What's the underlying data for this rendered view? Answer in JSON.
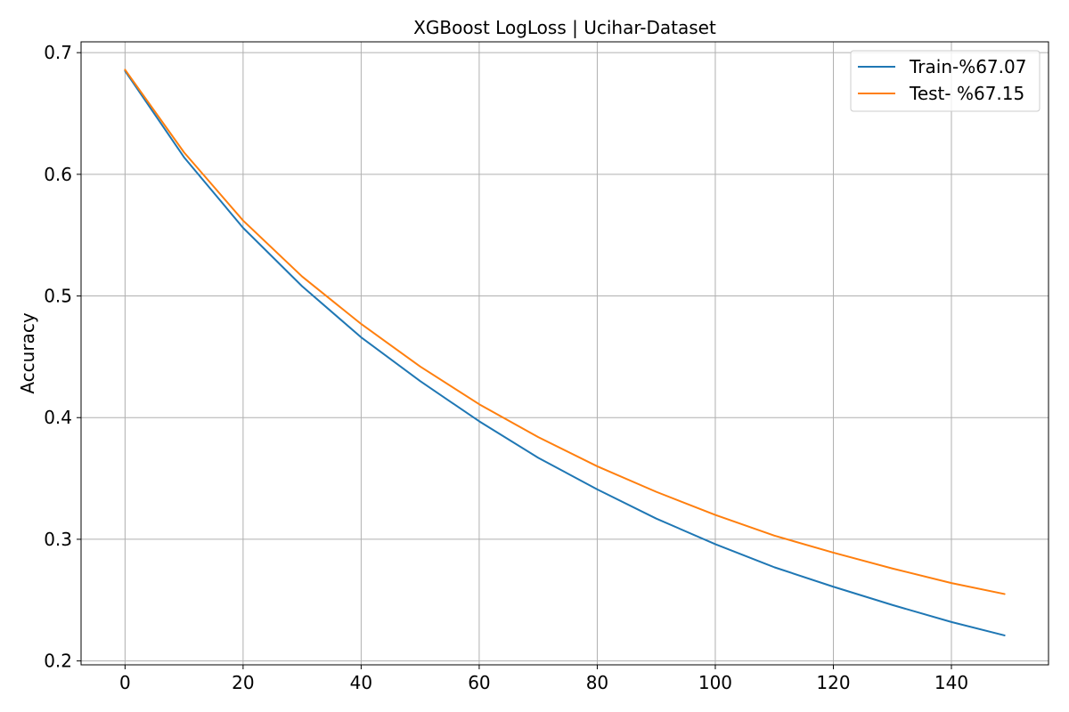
{
  "chart_data": {
    "type": "line",
    "title": "XGBoost LogLoss | Ucihar-Dataset",
    "xlabel": "",
    "ylabel": "Accuracy",
    "xlim": [
      -7.45,
      156.45
    ],
    "ylim": [
      0.1968,
      0.7089
    ],
    "xticks": [
      0,
      20,
      40,
      60,
      80,
      100,
      120,
      140
    ],
    "yticks": [
      0.2,
      0.3,
      0.4,
      0.5,
      0.6,
      0.7
    ],
    "xtick_labels": [
      "0",
      "20",
      "40",
      "60",
      "80",
      "100",
      "120",
      "140"
    ],
    "ytick_labels": [
      "0.2",
      "0.3",
      "0.4",
      "0.5",
      "0.6",
      "0.7"
    ],
    "grid": true,
    "legend_position": "top-right",
    "x": [
      0,
      10,
      20,
      30,
      40,
      50,
      60,
      70,
      80,
      90,
      100,
      110,
      120,
      130,
      140,
      149
    ],
    "series": [
      {
        "name": "Train-%67.07",
        "color": "#1f77b4",
        "values": [
          0.685,
          0.614,
          0.556,
          0.508,
          0.466,
          0.43,
          0.397,
          0.367,
          0.341,
          0.317,
          0.296,
          0.277,
          0.261,
          0.246,
          0.232,
          0.221
        ]
      },
      {
        "name": "Test- %67.15",
        "color": "#ff7f0e",
        "values": [
          0.686,
          0.618,
          0.562,
          0.516,
          0.477,
          0.442,
          0.411,
          0.384,
          0.36,
          0.339,
          0.32,
          0.303,
          0.289,
          0.276,
          0.264,
          0.255
        ]
      }
    ]
  }
}
